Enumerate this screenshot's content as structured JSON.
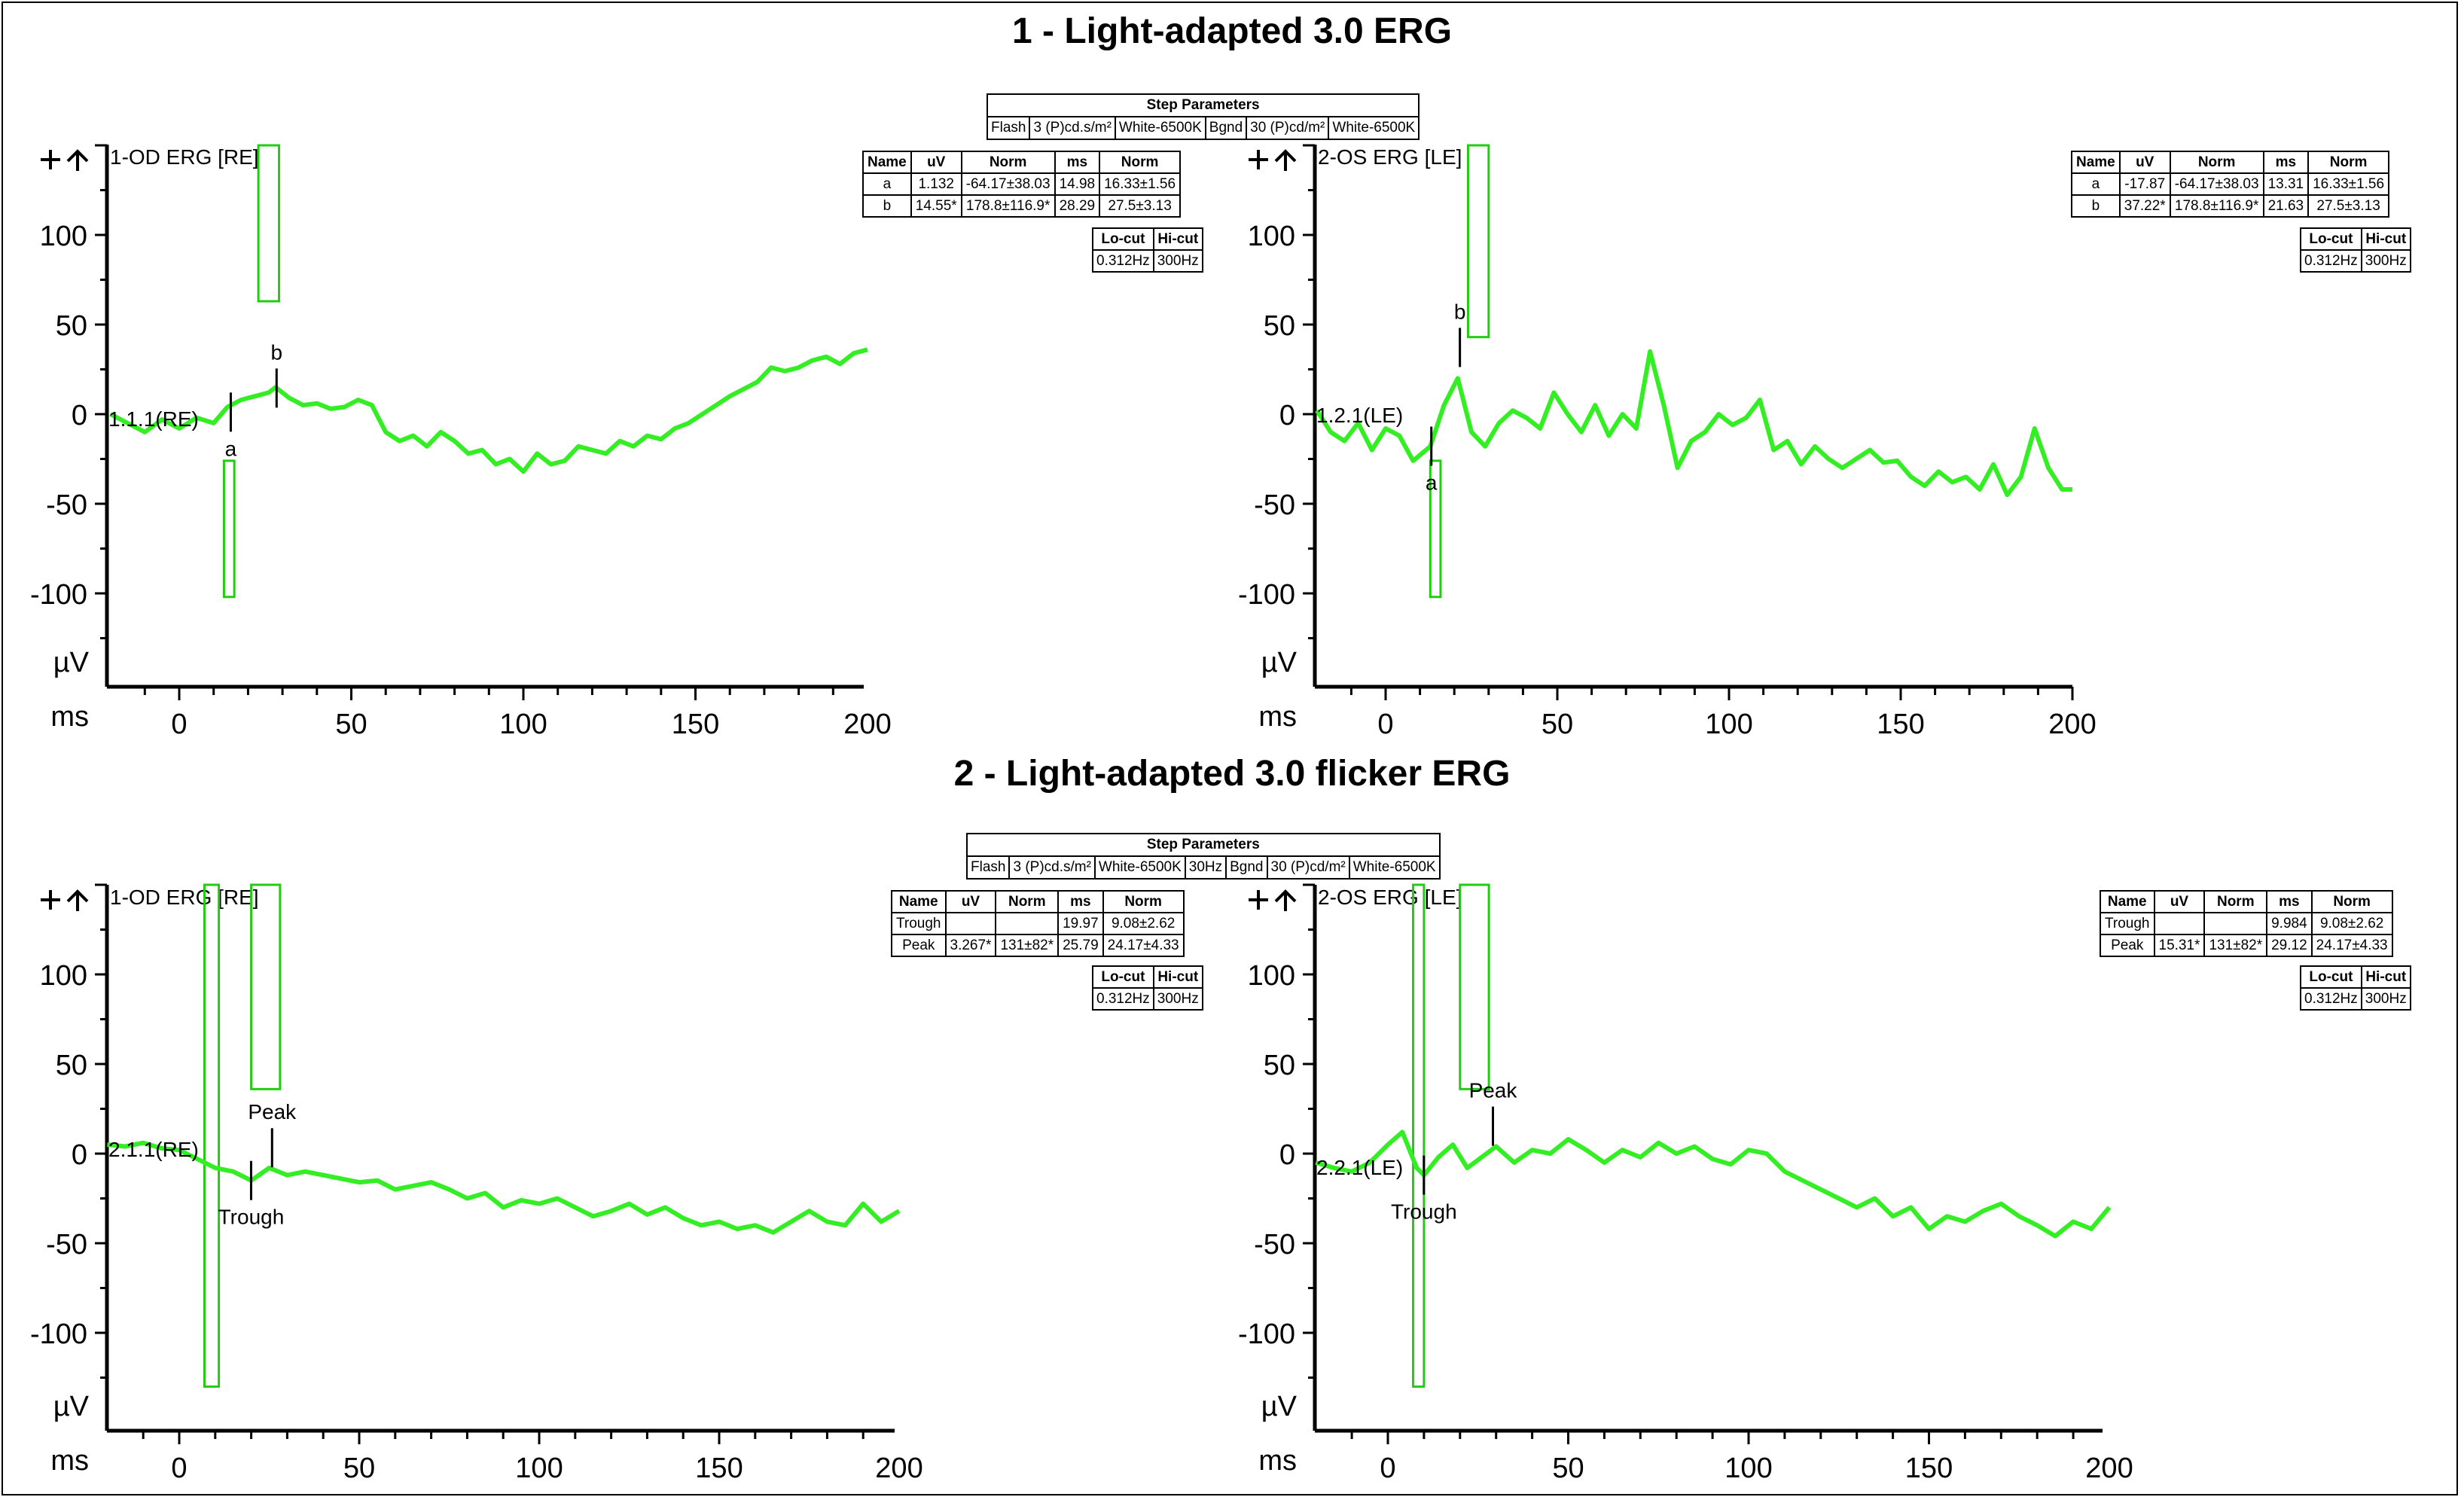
{
  "sections": [
    {
      "title": "1 - Light-adapted 3.0 ERG",
      "step_parameters": {
        "title": "Step Parameters",
        "cells": [
          "Flash",
          "3 (P)cd.s/m²",
          "White-6500K",
          "Bgnd",
          "30 (P)cd/m²",
          "White-6500K"
        ]
      }
    },
    {
      "title": "2 - Light-adapted 3.0 flicker ERG",
      "step_parameters": {
        "title": "Step Parameters",
        "cells": [
          "Flash",
          "3 (P)cd.s/m²",
          "White-6500K",
          "30Hz",
          "Bgnd",
          "30 (P)cd/m²",
          "White-6500K"
        ]
      }
    }
  ],
  "filter_table": {
    "headers": [
      "Lo-cut",
      "Hi-cut"
    ],
    "values": [
      "0.312Hz",
      "300Hz"
    ]
  },
  "panel_icons": [
    "plus-icon",
    "up-arrow-icon"
  ],
  "trace_color": "#33ee22",
  "marker_color": "#22cc11",
  "chart_data": [
    {
      "type": "line",
      "label": "1-OD ERG [RE]",
      "trace_label": "1.1.1(RE)",
      "xlabel": "ms",
      "ylabel": "µV",
      "xlim": [
        -20,
        200
      ],
      "ylim": [
        -130,
        150
      ],
      "xticks": [
        0,
        50,
        100,
        150,
        200
      ],
      "yticks": [
        100,
        50,
        0,
        -50,
        -100
      ],
      "x": [
        -20,
        -15,
        -10,
        -5,
        0,
        5,
        10,
        14,
        18,
        22,
        26,
        28,
        32,
        36,
        40,
        44,
        48,
        52,
        56,
        60,
        64,
        68,
        72,
        76,
        80,
        84,
        88,
        92,
        96,
        100,
        104,
        108,
        112,
        116,
        120,
        124,
        128,
        132,
        136,
        140,
        144,
        148,
        152,
        156,
        160,
        164,
        168,
        172,
        176,
        180,
        184,
        188,
        192,
        196,
        200
      ],
      "y": [
        0,
        -5,
        -10,
        -3,
        -8,
        -2,
        -5,
        4,
        8,
        10,
        12,
        15,
        9,
        5,
        6,
        3,
        4,
        8,
        5,
        -10,
        -15,
        -12,
        -18,
        -10,
        -15,
        -22,
        -20,
        -28,
        -25,
        -32,
        -22,
        -28,
        -26,
        -18,
        -20,
        -22,
        -15,
        -18,
        -12,
        -14,
        -8,
        -5,
        0,
        5,
        10,
        14,
        18,
        26,
        24,
        26,
        30,
        32,
        28,
        34,
        36
      ],
      "peaks": [
        {
          "name": "a",
          "x": 14.98,
          "y": 1.132
        },
        {
          "name": "b",
          "x": 28.29,
          "y": 14.55
        }
      ],
      "results": {
        "headers": [
          "Name",
          "uV",
          "Norm",
          "ms",
          "Norm"
        ],
        "rows": [
          [
            "a",
            "1.132",
            "-64.17±38.03",
            "14.98",
            "16.33±1.56"
          ],
          [
            "b",
            "14.55*",
            "178.8±116.9*",
            "28.29",
            "27.5±3.13"
          ]
        ]
      },
      "markers": [
        {
          "x_start": 23,
          "x_end": 29,
          "y_low": 63,
          "y_high": 150
        },
        {
          "x_start": 13,
          "x_end": 16,
          "y_low": -102,
          "y_high": -26
        }
      ]
    },
    {
      "type": "line",
      "label": "2-OS ERG [LE]",
      "trace_label": "1.2.1(LE)",
      "xlabel": "ms",
      "ylabel": "µV",
      "xlim": [
        -20,
        200
      ],
      "ylim": [
        -130,
        150
      ],
      "xticks": [
        0,
        50,
        100,
        150,
        200
      ],
      "yticks": [
        100,
        50,
        0,
        -50,
        -100
      ],
      "x": [
        -20,
        -16,
        -12,
        -8,
        -4,
        0,
        4,
        8,
        13,
        17,
        21,
        25,
        29,
        33,
        37,
        41,
        45,
        49,
        53,
        57,
        61,
        65,
        69,
        73,
        77,
        81,
        85,
        89,
        93,
        97,
        101,
        105,
        109,
        113,
        117,
        121,
        125,
        129,
        133,
        137,
        141,
        145,
        149,
        153,
        157,
        161,
        165,
        169,
        173,
        177,
        181,
        185,
        189,
        193,
        197,
        200
      ],
      "y": [
        2,
        -10,
        -15,
        -5,
        -20,
        -8,
        -12,
        -26,
        -18,
        5,
        20,
        -10,
        -18,
        -5,
        2,
        -2,
        -8,
        12,
        0,
        -10,
        5,
        -12,
        0,
        -8,
        35,
        5,
        -30,
        -15,
        -10,
        0,
        -6,
        -2,
        8,
        -20,
        -15,
        -28,
        -18,
        -25,
        -30,
        -25,
        -20,
        -27,
        -26,
        -35,
        -40,
        -32,
        -38,
        -35,
        -42,
        -28,
        -45,
        -35,
        -8,
        -30,
        -42,
        -42
      ],
      "peaks": [
        {
          "name": "a",
          "x": 13.31,
          "y": -17.87
        },
        {
          "name": "b",
          "x": 21.63,
          "y": 37.22
        }
      ],
      "results": {
        "headers": [
          "Name",
          "uV",
          "Norm",
          "ms",
          "Norm"
        ],
        "rows": [
          [
            "a",
            "-17.87",
            "-64.17±38.03",
            "13.31",
            "16.33±1.56"
          ],
          [
            "b",
            "37.22*",
            "178.8±116.9*",
            "21.63",
            "27.5±3.13"
          ]
        ]
      },
      "markers": [
        {
          "x_start": 24,
          "x_end": 30,
          "y_low": 43,
          "y_high": 150
        },
        {
          "x_start": 13,
          "x_end": 16,
          "y_low": -102,
          "y_high": -26
        }
      ]
    },
    {
      "type": "line",
      "label": "1-OD ERG [RE]",
      "trace_label": "2.1.1(RE)",
      "xlabel": "ms",
      "ylabel": "µV",
      "xlim": [
        -20,
        200
      ],
      "ylim": [
        -130,
        150
      ],
      "xticks": [
        0,
        50,
        100,
        150,
        200
      ],
      "yticks": [
        100,
        50,
        0,
        -50,
        -100
      ],
      "x": [
        -20,
        -15,
        -10,
        -5,
        0,
        5,
        10,
        15,
        20,
        25,
        30,
        35,
        40,
        45,
        50,
        55,
        60,
        65,
        70,
        75,
        80,
        85,
        90,
        95,
        100,
        105,
        110,
        115,
        120,
        125,
        130,
        135,
        140,
        145,
        150,
        155,
        160,
        165,
        170,
        175,
        180,
        185,
        190,
        195,
        200
      ],
      "y": [
        5,
        4,
        6,
        3,
        2,
        -3,
        -8,
        -10,
        -15,
        -8,
        -12,
        -10,
        -12,
        -14,
        -16,
        -15,
        -20,
        -18,
        -16,
        -20,
        -25,
        -22,
        -30,
        -26,
        -28,
        -25,
        -30,
        -35,
        -32,
        -28,
        -34,
        -30,
        -36,
        -40,
        -38,
        -42,
        -40,
        -44,
        -38,
        -32,
        -38,
        -40,
        -28,
        -38,
        -32
      ],
      "peaks": [
        {
          "name": "Trough",
          "x": 19.97,
          "y": -15
        },
        {
          "name": "Peak",
          "x": 25.79,
          "y": 3.267
        }
      ],
      "results": {
        "headers": [
          "Name",
          "uV",
          "Norm",
          "ms",
          "Norm"
        ],
        "rows": [
          [
            "Trough",
            "",
            "",
            "19.97",
            "9.08±2.62"
          ],
          [
            "Peak",
            "3.267*",
            "131±82*",
            "25.79",
            "24.17±4.33"
          ]
        ]
      },
      "markers": [
        {
          "x_start": 7,
          "x_end": 11,
          "y_low": -130,
          "y_high": 150
        },
        {
          "x_start": 20,
          "x_end": 28,
          "y_low": 36,
          "y_high": 150
        }
      ]
    },
    {
      "type": "line",
      "label": "2-OS ERG [LE]",
      "trace_label": "2.2.1(LE)",
      "xlabel": "ms",
      "ylabel": "µV",
      "xlim": [
        -20,
        200
      ],
      "ylim": [
        -130,
        150
      ],
      "xticks": [
        0,
        50,
        100,
        150,
        200
      ],
      "yticks": [
        100,
        50,
        0,
        -50,
        -100
      ],
      "x": [
        -20,
        -15,
        -10,
        -5,
        0,
        4,
        8,
        10,
        14,
        18,
        22,
        26,
        30,
        35,
        40,
        45,
        50,
        55,
        60,
        65,
        70,
        75,
        80,
        85,
        90,
        95,
        100,
        105,
        110,
        115,
        120,
        125,
        130,
        135,
        140,
        145,
        150,
        155,
        160,
        165,
        170,
        175,
        180,
        185,
        190,
        195,
        200
      ],
      "y": [
        -5,
        -8,
        -10,
        -5,
        5,
        12,
        -8,
        -12,
        -2,
        5,
        -8,
        -2,
        4,
        -5,
        2,
        0,
        8,
        2,
        -5,
        2,
        -2,
        6,
        0,
        4,
        -3,
        -6,
        2,
        0,
        -10,
        -15,
        -20,
        -25,
        -30,
        -25,
        -35,
        -30,
        -42,
        -35,
        -38,
        -32,
        -28,
        -35,
        -40,
        -46,
        -38,
        -42,
        -30
      ],
      "peaks": [
        {
          "name": "Trough",
          "x": 9.984,
          "y": -12
        },
        {
          "name": "Peak",
          "x": 29.12,
          "y": 15.31
        }
      ],
      "results": {
        "headers": [
          "Name",
          "uV",
          "Norm",
          "ms",
          "Norm"
        ],
        "rows": [
          [
            "Trough",
            "",
            "",
            "9.984",
            "9.08±2.62"
          ],
          [
            "Peak",
            "15.31*",
            "131±82*",
            "29.12",
            "24.17±4.33"
          ]
        ]
      },
      "markers": [
        {
          "x_start": 7,
          "x_end": 10,
          "y_low": -130,
          "y_high": 150
        },
        {
          "x_start": 20,
          "x_end": 28,
          "y_low": 36,
          "y_high": 150
        }
      ]
    }
  ]
}
